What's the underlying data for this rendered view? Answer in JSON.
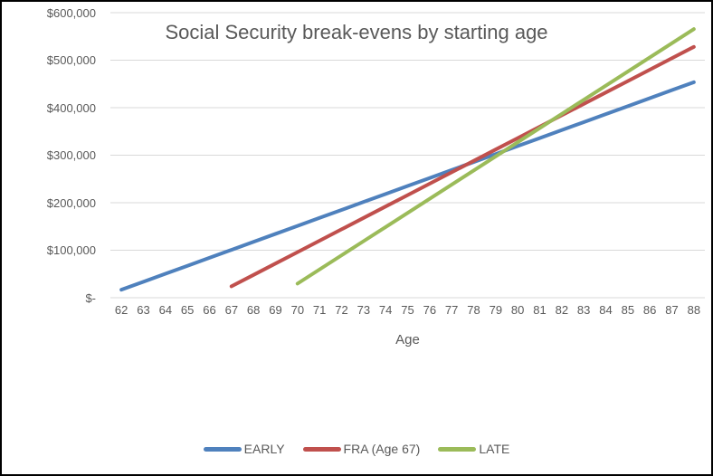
{
  "chart_data": {
    "type": "line",
    "title": "Social Security break-evens by starting age",
    "xlabel": "Age",
    "ylabel": "",
    "categories": [
      62,
      63,
      64,
      65,
      66,
      67,
      68,
      69,
      70,
      71,
      72,
      73,
      74,
      75,
      76,
      77,
      78,
      79,
      80,
      81,
      82,
      83,
      84,
      85,
      86,
      87,
      88
    ],
    "ylim": [
      0,
      600000
    ],
    "grid": true,
    "legend_position": "bottom",
    "y_ticks": [
      {
        "label": "$600,000",
        "value": 600000
      },
      {
        "label": "$500,000",
        "value": 500000
      },
      {
        "label": "$400,000",
        "value": 400000
      },
      {
        "label": "$300,000",
        "value": 300000
      },
      {
        "label": "$200,000",
        "value": 200000
      },
      {
        "label": "$100,000",
        "value": 100000
      },
      {
        "label": "$-",
        "value": 0
      }
    ],
    "series": [
      {
        "name": "EARLY",
        "color": "#4F81BD",
        "x": [
          62,
          63,
          64,
          65,
          66,
          67,
          68,
          69,
          70,
          71,
          72,
          73,
          74,
          75,
          76,
          77,
          78,
          79,
          80,
          81,
          82,
          83,
          84,
          85,
          86,
          87,
          88
        ],
        "values": [
          16800,
          33600,
          50400,
          67200,
          84000,
          100800,
          117600,
          134400,
          151200,
          168000,
          184800,
          201600,
          218400,
          235200,
          252000,
          268800,
          285600,
          302400,
          319200,
          336000,
          352800,
          369600,
          386400,
          403200,
          420000,
          436800,
          453600
        ]
      },
      {
        "name": "FRA (Age 67)",
        "color": "#C0504D",
        "x": [
          67,
          68,
          69,
          70,
          71,
          72,
          73,
          74,
          75,
          76,
          77,
          78,
          79,
          80,
          81,
          82,
          83,
          84,
          85,
          86,
          87,
          88
        ],
        "values": [
          24000,
          48000,
          72000,
          96000,
          120000,
          144000,
          168000,
          192000,
          216000,
          240000,
          264000,
          288000,
          312000,
          336000,
          360000,
          384000,
          408000,
          432000,
          456000,
          480000,
          504000,
          528000
        ]
      },
      {
        "name": "LATE",
        "color": "#9BBB59",
        "x": [
          70,
          71,
          72,
          73,
          74,
          75,
          76,
          77,
          78,
          79,
          80,
          81,
          82,
          83,
          84,
          85,
          86,
          87,
          88
        ],
        "values": [
          29760,
          59520,
          89280,
          119040,
          148800,
          178560,
          208320,
          238080,
          267840,
          297600,
          327360,
          357120,
          386880,
          416640,
          446400,
          476160,
          505920,
          535680,
          565440
        ]
      }
    ]
  },
  "colors": {
    "text": "#595959",
    "gridline": "#D9D9D9",
    "background": "#FFFFFF",
    "border": "#000000",
    "series_early": "#4F81BD",
    "series_fra": "#C0504D",
    "series_late": "#9BBB59"
  }
}
